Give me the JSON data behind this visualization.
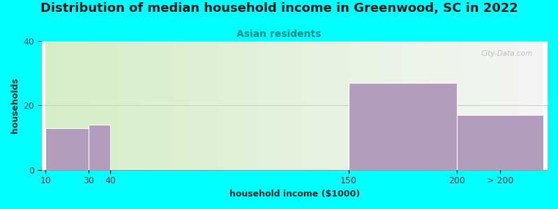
{
  "title": "Distribution of median household income in Greenwood, SC in 2022",
  "subtitle": "Asian residents",
  "xlabel": "household income ($1000)",
  "ylabel": "households",
  "background_color": "#00FFFF",
  "plot_bg_gradient_left": "#d6eec8",
  "plot_bg_gradient_right": "#f5f5f5",
  "bar_color": "#b39dbd",
  "bar_edgecolor": "#ffffff",
  "title_fontsize": 13,
  "subtitle_fontsize": 10,
  "axis_label_fontsize": 9,
  "tick_fontsize": 9,
  "title_color": "#1a1a1a",
  "subtitle_color": "#008888",
  "axis_label_color": "#2a2a2a",
  "tick_color": "#444444",
  "watermark": "City-Data.com",
  "grid_color": "#cccccc",
  "bin_edges": [
    10,
    30,
    40,
    150,
    200,
    240
  ],
  "bin_labels": [
    "10",
    "30",
    "40",
    "150",
    "200",
    "> 200"
  ],
  "values": [
    13,
    14,
    0,
    27,
    17
  ],
  "ylim": [
    0,
    40
  ],
  "yticks": [
    0,
    20,
    40
  ]
}
